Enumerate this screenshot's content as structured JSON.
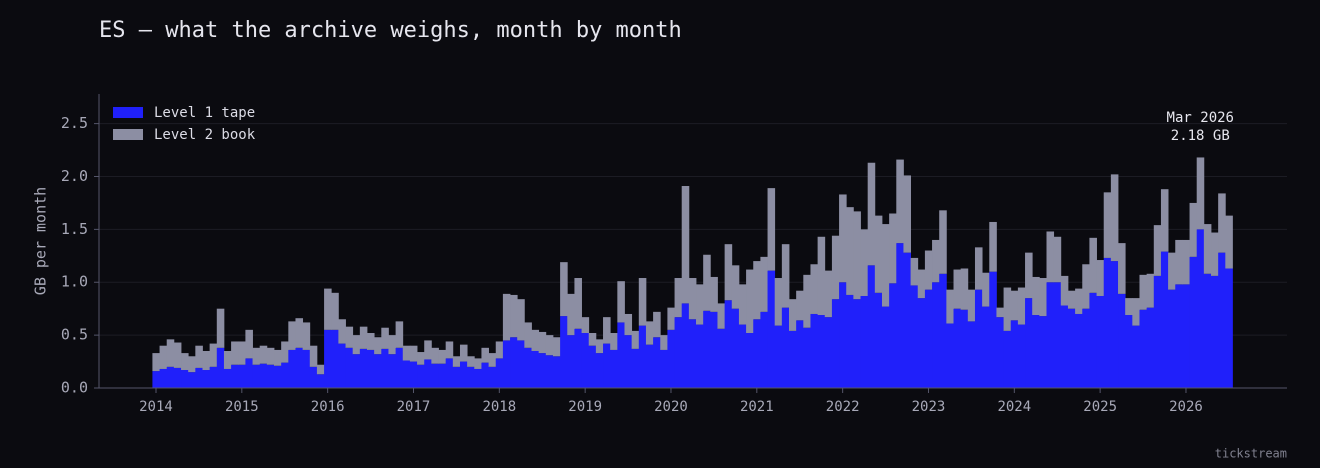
{
  "chart_data": {
    "type": "stacked_bar",
    "title": "ES — what the archive weighs, month by month",
    "y_label": "GB per month",
    "footer": "tickstream",
    "annotation": [
      "Mar 2026",
      "2.18 GB"
    ],
    "legend": "upper left",
    "grid": true,
    "ylim": [
      0,
      2.78
    ],
    "yticks": [
      {
        "value": 0,
        "label": "0.0"
      },
      0.5,
      {
        "value": 1,
        "label": "1.0"
      },
      1.5,
      {
        "value": 2,
        "label": "2.0"
      },
      2.5
    ],
    "xlim": [
      2013.336,
      2027.177
    ],
    "xticks": [
      2014,
      2015,
      2016,
      2017,
      2018,
      2019,
      2020,
      2021,
      2022,
      2023,
      2024,
      2025,
      2026
    ],
    "x": [
      "2014-01",
      "2014-02",
      "2014-03",
      "2014-04",
      "2014-05",
      "2014-06",
      "2014-07",
      "2014-08",
      "2014-09",
      "2014-10",
      "2014-11",
      "2014-12",
      "2015-01",
      "2015-02",
      "2015-03",
      "2015-04",
      "2015-05",
      "2015-06",
      "2015-07",
      "2015-08",
      "2015-09",
      "2015-10",
      "2015-11",
      "2015-12",
      "2016-01",
      "2016-02",
      "2016-03",
      "2016-04",
      "2016-05",
      "2016-06",
      "2016-07",
      "2016-08",
      "2016-09",
      "2016-10",
      "2016-11",
      "2016-12",
      "2017-01",
      "2017-02",
      "2017-03",
      "2017-04",
      "2017-05",
      "2017-06",
      "2017-07",
      "2017-08",
      "2017-09",
      "2017-10",
      "2017-11",
      "2017-12",
      "2018-01",
      "2018-02",
      "2018-03",
      "2018-04",
      "2018-05",
      "2018-06",
      "2018-07",
      "2018-08",
      "2018-09",
      "2018-10",
      "2018-11",
      "2018-12",
      "2019-01",
      "2019-02",
      "2019-03",
      "2019-04",
      "2019-05",
      "2019-06",
      "2019-07",
      "2019-08",
      "2019-09",
      "2019-10",
      "2019-11",
      "2019-12",
      "2020-01",
      "2020-02",
      "2020-03",
      "2020-04",
      "2020-05",
      "2020-06",
      "2020-07",
      "2020-08",
      "2020-09",
      "2020-10",
      "2020-11",
      "2020-12",
      "2021-01",
      "2021-02",
      "2021-03",
      "2021-04",
      "2021-05",
      "2021-06",
      "2021-07",
      "2021-08",
      "2021-09",
      "2021-10",
      "2021-11",
      "2021-12",
      "2022-01",
      "2022-02",
      "2022-03",
      "2022-04",
      "2022-05",
      "2022-06",
      "2022-07",
      "2022-08",
      "2022-09",
      "2022-10",
      "2022-11",
      "2022-12",
      "2023-01",
      "2023-02",
      "2023-03",
      "2023-04",
      "2023-05",
      "2023-06",
      "2023-07",
      "2023-08",
      "2023-09",
      "2023-10",
      "2023-11",
      "2023-12",
      "2024-01",
      "2024-02",
      "2024-03",
      "2024-04",
      "2024-05",
      "2024-06",
      "2024-07",
      "2024-08",
      "2024-09",
      "2024-10",
      "2024-11",
      "2024-12",
      "2025-01",
      "2025-02",
      "2025-03",
      "2025-04",
      "2025-05",
      "2025-06",
      "2025-07",
      "2025-08",
      "2025-09",
      "2025-10",
      "2025-11",
      "2025-12",
      "2026-01",
      "2026-02",
      "2026-03",
      "2026-04",
      "2026-05",
      "2026-06",
      "2026-07"
    ],
    "series": [
      {
        "name": "Level 1 tape",
        "color": "#2020fa",
        "values": [
          0.16,
          0.18,
          0.2,
          0.19,
          0.17,
          0.15,
          0.19,
          0.17,
          0.2,
          0.38,
          0.18,
          0.22,
          0.22,
          0.28,
          0.22,
          0.23,
          0.22,
          0.21,
          0.24,
          0.36,
          0.38,
          0.36,
          0.2,
          0.13,
          0.55,
          0.55,
          0.42,
          0.38,
          0.32,
          0.37,
          0.36,
          0.32,
          0.37,
          0.32,
          0.38,
          0.26,
          0.25,
          0.22,
          0.27,
          0.23,
          0.23,
          0.28,
          0.2,
          0.25,
          0.2,
          0.18,
          0.24,
          0.2,
          0.28,
          0.45,
          0.48,
          0.45,
          0.38,
          0.35,
          0.33,
          0.31,
          0.3,
          0.68,
          0.5,
          0.56,
          0.52,
          0.4,
          0.33,
          0.42,
          0.36,
          0.62,
          0.5,
          0.37,
          0.59,
          0.41,
          0.48,
          0.36,
          0.55,
          0.67,
          0.8,
          0.65,
          0.6,
          0.73,
          0.72,
          0.56,
          0.83,
          0.75,
          0.6,
          0.52,
          0.65,
          0.72,
          1.11,
          0.59,
          0.76,
          0.54,
          0.64,
          0.57,
          0.7,
          0.69,
          0.67,
          0.84,
          1.0,
          0.88,
          0.84,
          0.87,
          1.16,
          0.9,
          0.77,
          0.99,
          1.37,
          1.28,
          0.97,
          0.85,
          0.93,
          1.0,
          1.08,
          0.61,
          0.75,
          0.74,
          0.63,
          0.93,
          0.77,
          1.1,
          0.67,
          0.54,
          0.64,
          0.6,
          0.85,
          0.69,
          0.68,
          1.0,
          1.0,
          0.78,
          0.75,
          0.7,
          0.75,
          0.9,
          0.87,
          1.23,
          1.2,
          0.89,
          0.69,
          0.59,
          0.74,
          0.76,
          1.06,
          1.29,
          0.93,
          0.98,
          0.98,
          1.24,
          1.5,
          1.08,
          1.06,
          1.28,
          1.13
        ]
      },
      {
        "name": "Level 2 book",
        "color": "#8c8ea3",
        "values": [
          0.17,
          0.22,
          0.26,
          0.24,
          0.16,
          0.15,
          0.21,
          0.18,
          0.22,
          0.37,
          0.17,
          0.22,
          0.22,
          0.27,
          0.16,
          0.17,
          0.16,
          0.15,
          0.2,
          0.27,
          0.28,
          0.26,
          0.2,
          0.09,
          0.39,
          0.35,
          0.23,
          0.2,
          0.18,
          0.21,
          0.16,
          0.16,
          0.2,
          0.18,
          0.25,
          0.14,
          0.15,
          0.12,
          0.18,
          0.15,
          0.13,
          0.16,
          0.1,
          0.16,
          0.1,
          0.1,
          0.14,
          0.13,
          0.16,
          0.44,
          0.4,
          0.39,
          0.24,
          0.2,
          0.2,
          0.19,
          0.18,
          0.51,
          0.39,
          0.48,
          0.15,
          0.12,
          0.13,
          0.25,
          0.16,
          0.39,
          0.2,
          0.17,
          0.45,
          0.22,
          0.24,
          0.14,
          0.21,
          0.37,
          1.11,
          0.39,
          0.38,
          0.53,
          0.33,
          0.24,
          0.53,
          0.41,
          0.38,
          0.6,
          0.55,
          0.52,
          0.78,
          0.45,
          0.6,
          0.3,
          0.28,
          0.5,
          0.47,
          0.74,
          0.44,
          0.6,
          0.83,
          0.83,
          0.83,
          0.63,
          0.97,
          0.73,
          0.78,
          0.66,
          0.79,
          0.73,
          0.26,
          0.27,
          0.37,
          0.4,
          0.6,
          0.32,
          0.37,
          0.39,
          0.3,
          0.4,
          0.32,
          0.47,
          0.09,
          0.41,
          0.28,
          0.35,
          0.43,
          0.36,
          0.36,
          0.48,
          0.43,
          0.28,
          0.17,
          0.24,
          0.42,
          0.52,
          0.34,
          0.62,
          0.82,
          0.48,
          0.16,
          0.26,
          0.33,
          0.32,
          0.48,
          0.59,
          0.35,
          0.42,
          0.42,
          0.51,
          0.68,
          0.47,
          0.41,
          0.56,
          0.5
        ]
      }
    ]
  }
}
